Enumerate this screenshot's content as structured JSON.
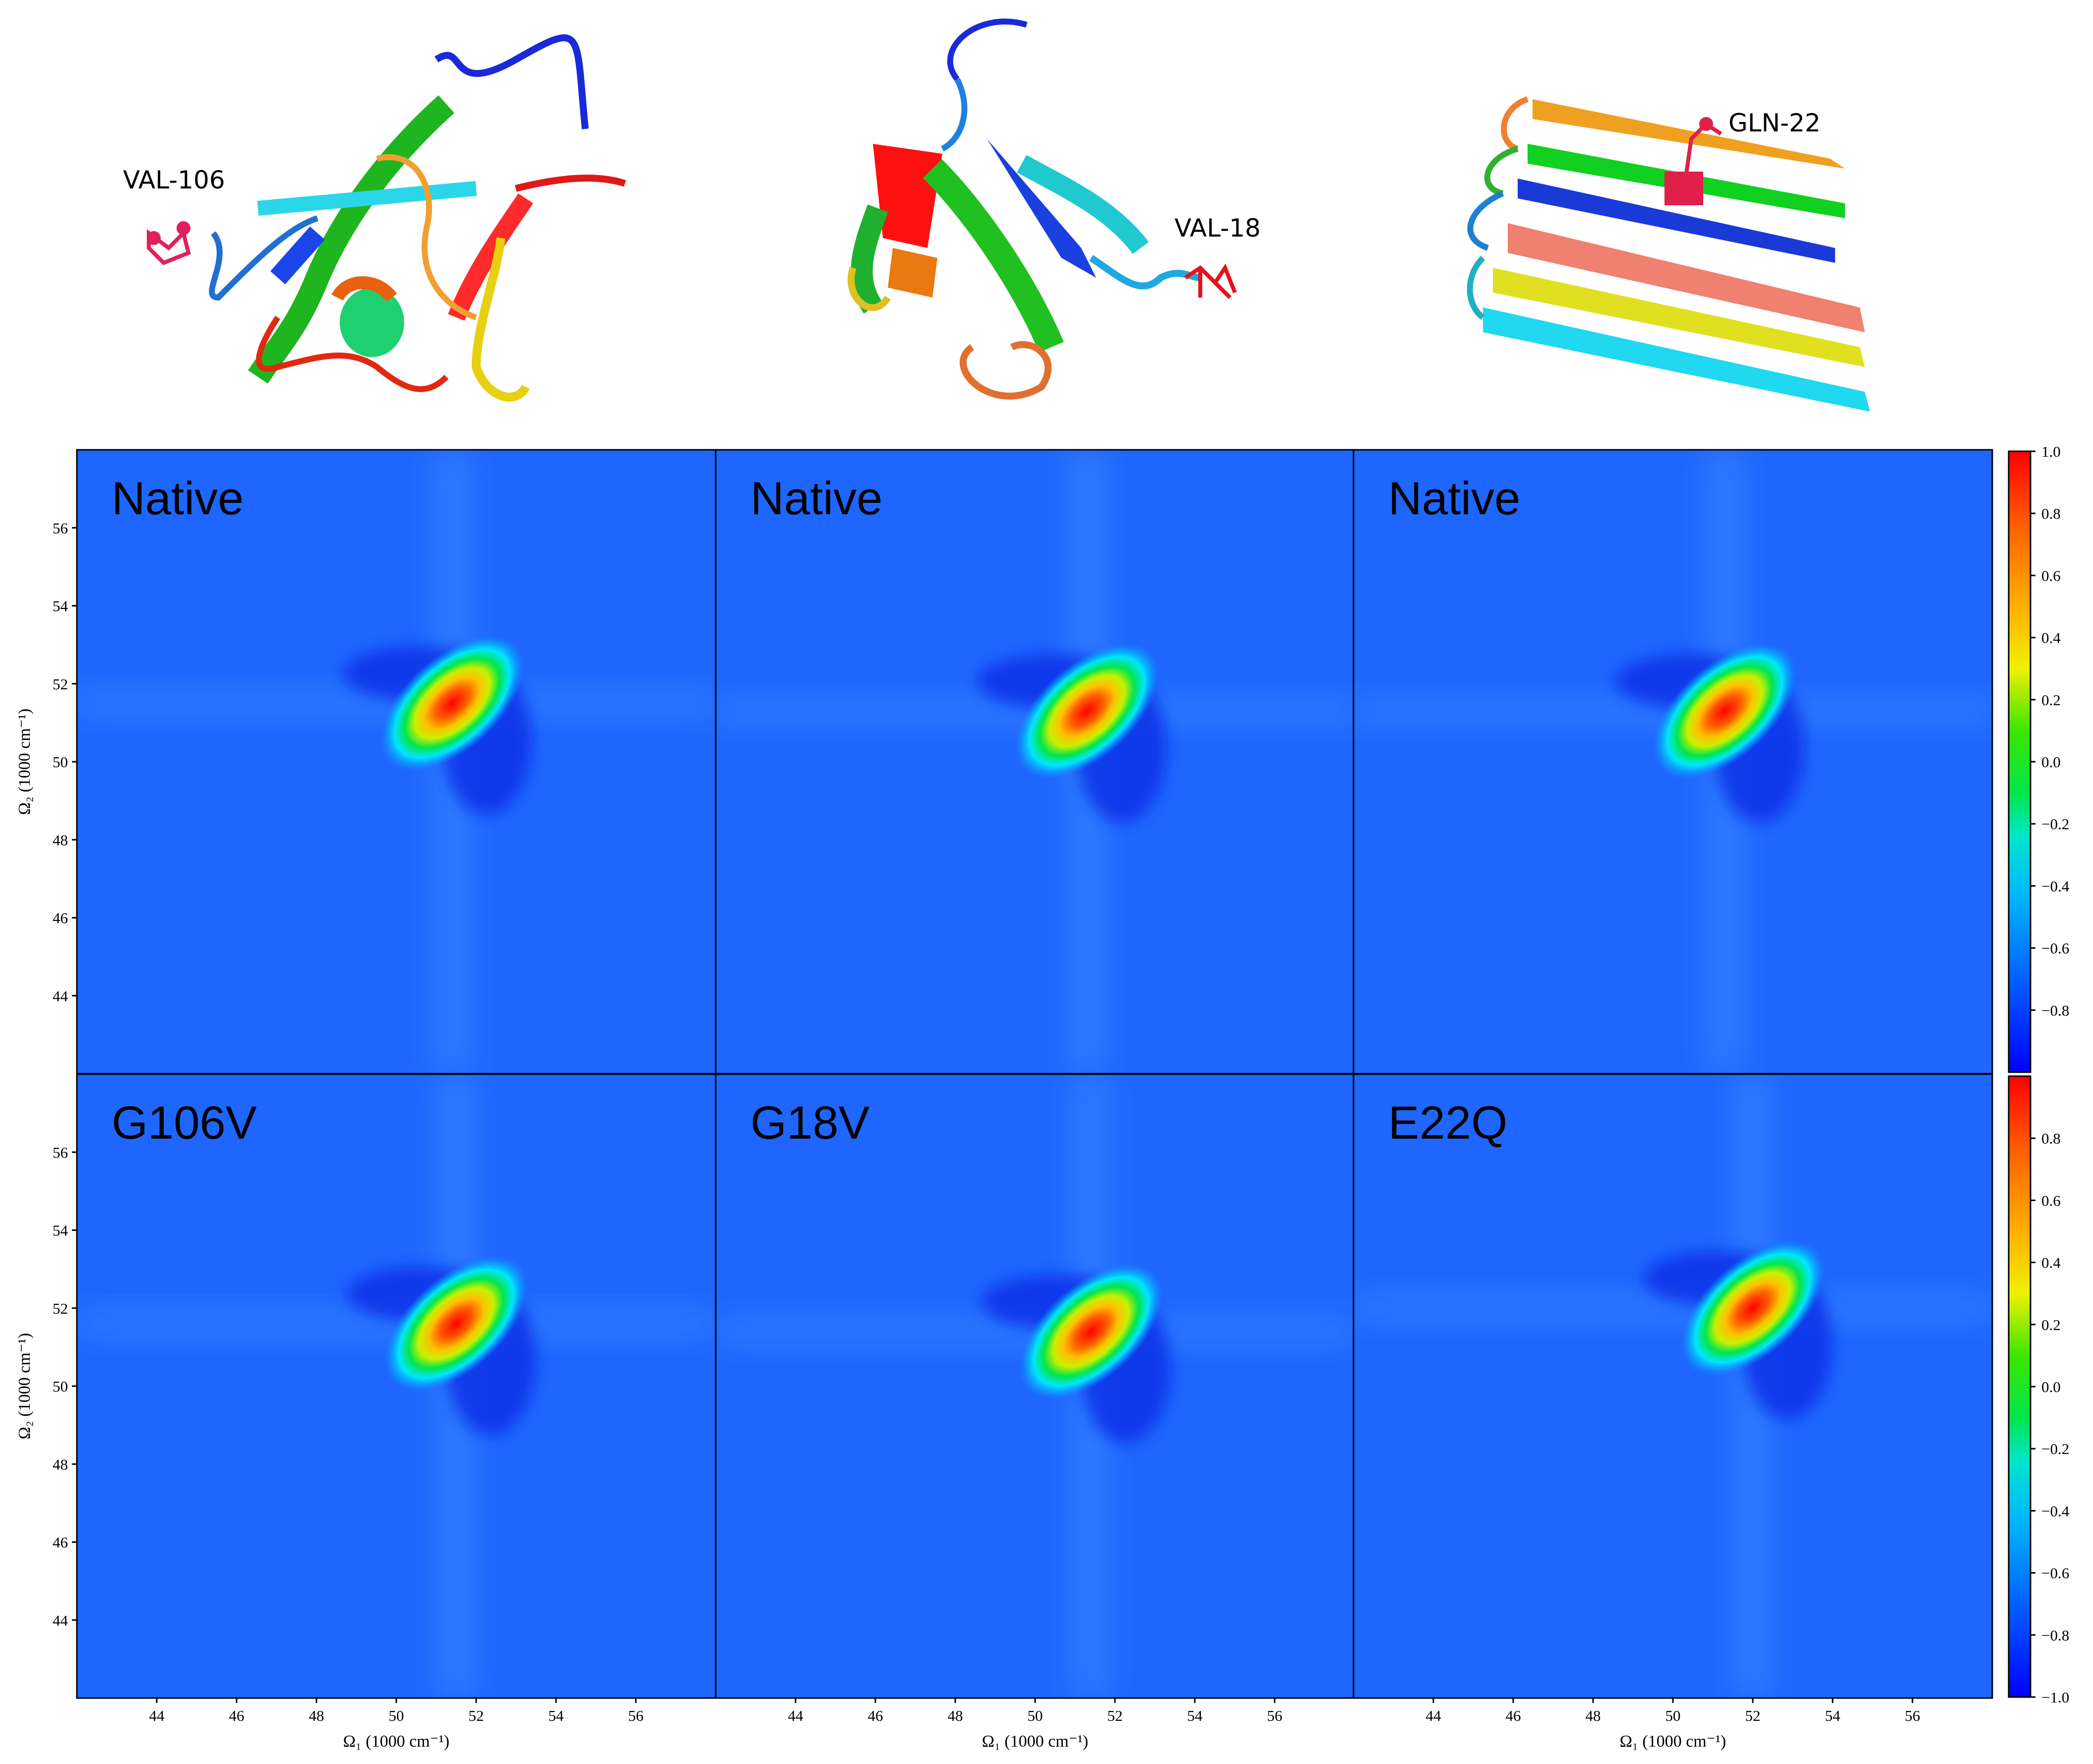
{
  "colors": {
    "background_blue": "#1f66ff",
    "colormap": [
      "#0000ff",
      "#0050ff",
      "#00a0ff",
      "#00e6ff",
      "#00e64c",
      "#3ce600",
      "#f0f000",
      "#ffa000",
      "#ff5a00",
      "#ff0000"
    ]
  },
  "structures": [
    {
      "residue_label": "VAL-106"
    },
    {
      "residue_label": "VAL-18"
    },
    {
      "residue_label": "GLN-22"
    }
  ],
  "colorbars": [
    {
      "ticks": [
        "1.0",
        "0.8",
        "0.6",
        "0.4",
        "0.2",
        "0.0",
        "−0.2",
        "−0.4",
        "−0.6",
        "−0.8"
      ]
    },
    {
      "ticks": [
        "0.8",
        "0.6",
        "0.4",
        "0.2",
        "0.0",
        "−0.2",
        "−0.4",
        "−0.6",
        "−0.8",
        "−1.0"
      ]
    }
  ],
  "chart_data": {
    "type": "heatmap",
    "xlabel": "Ω₁ (1000 cm⁻¹)",
    "ylabel": "Ω₂ (1000 cm⁻¹)",
    "xlim": [
      42,
      58
    ],
    "ylim": [
      42,
      58
    ],
    "xticks": [
      "44",
      "46",
      "48",
      "50",
      "52",
      "54",
      "56"
    ],
    "yticks": [
      "44",
      "46",
      "48",
      "50",
      "52",
      "54",
      "56"
    ],
    "zlim": [
      -1.0,
      1.0
    ],
    "panels": [
      {
        "title": "Native",
        "peak_x": 51.4,
        "peak_y": 51.5
      },
      {
        "title": "Native",
        "peak_x": 51.3,
        "peak_y": 51.3
      },
      {
        "title": "Native",
        "peak_x": 51.3,
        "peak_y": 51.3
      },
      {
        "title": "G106V",
        "peak_x": 51.5,
        "peak_y": 51.6
      },
      {
        "title": "G18V",
        "peak_x": 51.4,
        "peak_y": 51.4
      },
      {
        "title": "E22Q",
        "peak_x": 52.0,
        "peak_y": 52.0
      }
    ]
  }
}
